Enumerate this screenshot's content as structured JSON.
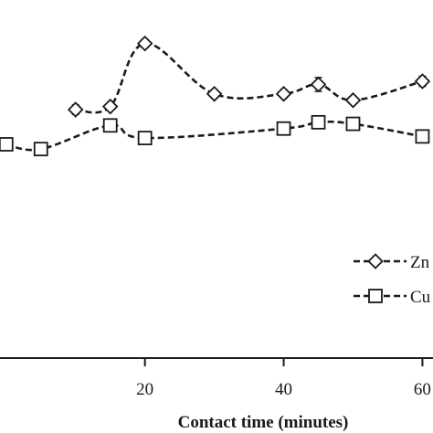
{
  "chart_data": {
    "type": "line",
    "xlabel": "Contact time (minutes)",
    "ylabel": "",
    "xlim": [
      -3,
      66
    ],
    "ylim": [
      0,
      100
    ],
    "x_ticks": [
      20,
      40,
      60
    ],
    "x_tick_labels": [
      "20",
      "40",
      "60"
    ],
    "grid": false,
    "legend_position": "bottom-right",
    "series": [
      {
        "name": "Zn",
        "marker": "diamond",
        "x": [
          10,
          15,
          20,
          30,
          40,
          45,
          50,
          60
        ],
        "y": [
          71,
          72,
          92,
          76,
          76,
          79,
          74,
          80
        ],
        "err": [
          1.5,
          1.2,
          1.3,
          1.3,
          1.3,
          2.2,
          1.0,
          1.6
        ]
      },
      {
        "name": "Cu",
        "marker": "square",
        "x": [
          0,
          5,
          15,
          20,
          40,
          45,
          50,
          60
        ],
        "y": [
          60,
          58.5,
          66,
          62,
          65,
          67,
          66.5,
          62.5
        ],
        "err": [
          0.9,
          0.9,
          1.2,
          0.7,
          1.1,
          1.2,
          0.8,
          0.7
        ]
      }
    ]
  },
  "colors": {
    "ink": "#1a1a1a",
    "background": "#ffffff"
  }
}
